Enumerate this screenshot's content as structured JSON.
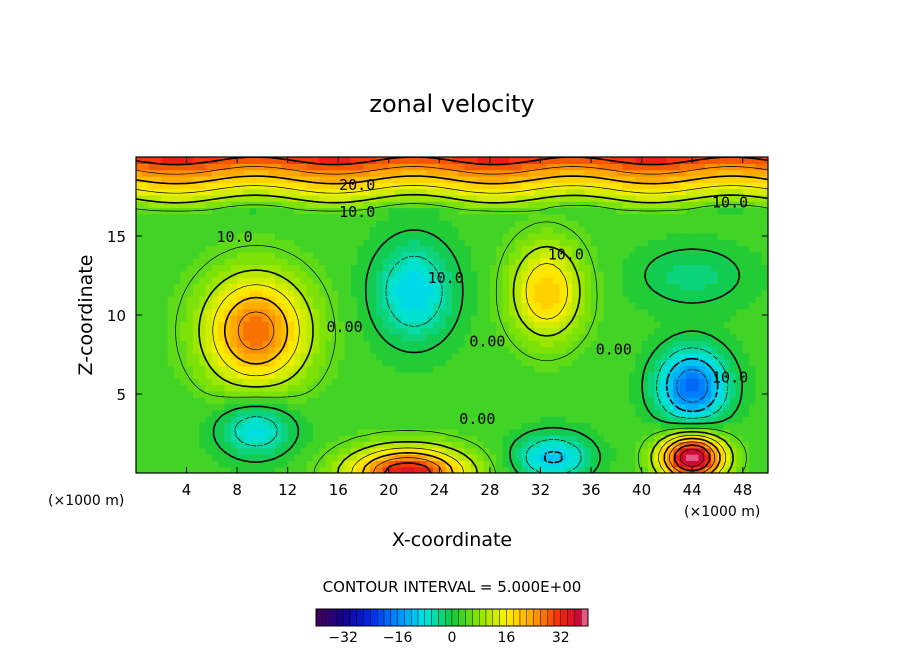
{
  "chart_data": {
    "type": "heatmap",
    "title": "zonal velocity",
    "xlabel": "X-coordinate",
    "ylabel": "Z-coordinate",
    "x_unit_left": "(×1000 m)",
    "x_unit_right": "(×1000 m)",
    "xlim": [
      0,
      50
    ],
    "ylim": [
      0,
      20
    ],
    "x_ticks": [
      4,
      8,
      12,
      16,
      20,
      24,
      28,
      32,
      36,
      40,
      44,
      48
    ],
    "y_ticks": [
      5,
      10,
      15
    ],
    "contour_interval_text": "CONTOUR INTERVAL = 5.000E+00",
    "colorbar": {
      "min": -40,
      "max": 40,
      "ticks": [
        -32,
        -16,
        0,
        16,
        32
      ]
    },
    "contour_labels": [
      {
        "text": "20.0",
        "x": 17.5,
        "y": 18.2
      },
      {
        "text": "10.0",
        "x": 17.5,
        "y": 16.5
      },
      {
        "text": "10.0",
        "x": 7.8,
        "y": 14.9
      },
      {
        "text": "10.0",
        "x": 47.0,
        "y": 17.1
      },
      {
        "text": "10.0",
        "x": 24.5,
        "y": 12.3
      },
      {
        "text": "10.0",
        "x": 34.0,
        "y": 13.8
      },
      {
        "text": "10.0",
        "x": 47.0,
        "y": 6.0
      },
      {
        "text": "0.00",
        "x": 16.5,
        "y": 9.2
      },
      {
        "text": "0.00",
        "x": 27.8,
        "y": 8.3
      },
      {
        "text": "0.00",
        "x": 37.8,
        "y": 7.8
      },
      {
        "text": "0.00",
        "x": 27.0,
        "y": 3.4
      }
    ],
    "field_features": [
      {
        "x": 9.5,
        "y": 9.0,
        "value": 25,
        "sx": 4.0,
        "sy": 3.4
      },
      {
        "x": 22.0,
        "y": 11.5,
        "value": -13,
        "sx": 3.2,
        "sy": 3.2
      },
      {
        "x": 32.5,
        "y": 11.5,
        "value": 17,
        "sx": 2.8,
        "sy": 3.0
      },
      {
        "x": 44.0,
        "y": 5.5,
        "value": -22,
        "sx": 2.8,
        "sy": 2.4
      },
      {
        "x": 44.0,
        "y": 1.0,
        "value": 38,
        "sx": 2.5,
        "sy": 1.5
      },
      {
        "x": 21.5,
        "y": 0.0,
        "value": 32,
        "sx": 4.5,
        "sy": 1.6
      },
      {
        "x": 9.5,
        "y": 2.8,
        "value": -12,
        "sx": 3.0,
        "sy": 1.8
      },
      {
        "x": 33.0,
        "y": 1.0,
        "value": -14,
        "sx": 3.0,
        "sy": 1.5
      },
      {
        "x": 44.0,
        "y": 12.5,
        "value": -6,
        "sx": 4.5,
        "sy": 2.0
      }
    ],
    "top_layer": {
      "z_start": 16.5,
      "value_at_top": 32
    }
  }
}
